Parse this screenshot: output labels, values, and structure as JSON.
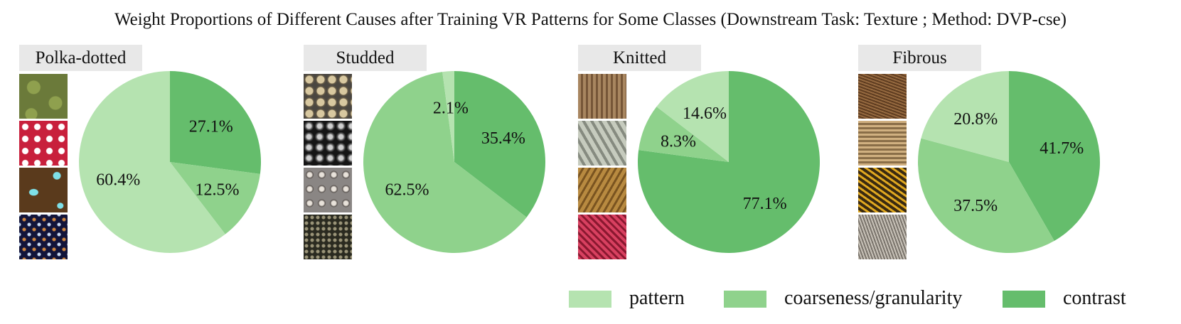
{
  "title": "Weight Proportions of Different Causes after Training VR Patterns for Some Classes (Downstream Task: Texture ; Method: DVP-cse)",
  "legend": [
    {
      "key": "pattern",
      "label": "pattern",
      "color": "#b5e3b0"
    },
    {
      "key": "coarseness",
      "label": "coarseness/granularity",
      "color": "#8fd28c"
    },
    {
      "key": "contrast",
      "label": "contrast",
      "color": "#65bd6c"
    }
  ],
  "chart_data": [
    {
      "type": "pie",
      "title": "Polka-dotted",
      "thumbnails": [
        "olive-polka-dot-swatch",
        "red-polka-dot-swatch",
        "brown-polka-dot-swatch",
        "navy-polka-dot-swatch"
      ],
      "slices": [
        {
          "label": "contrast",
          "value": 27.1,
          "text": "27.1%"
        },
        {
          "label": "coarseness/granularity",
          "value": 12.5,
          "text": "12.5%"
        },
        {
          "label": "pattern",
          "value": 60.4,
          "text": "60.4%"
        }
      ]
    },
    {
      "type": "pie",
      "title": "Studded",
      "thumbnails": [
        "silver-stud-swatch",
        "black-stud-swatch",
        "metal-rivet-swatch",
        "dark-stud-grid-swatch"
      ],
      "slices": [
        {
          "label": "contrast",
          "value": 35.4,
          "text": "35.4%"
        },
        {
          "label": "coarseness/granularity",
          "value": 62.5,
          "text": "62.5%"
        },
        {
          "label": "pattern",
          "value": 2.1,
          "text": "2.1%"
        }
      ]
    },
    {
      "type": "pie",
      "title": "Knitted",
      "thumbnails": [
        "brown-knit-swatch",
        "grey-cable-knit-swatch",
        "tan-knit-swatch",
        "red-knit-swatch"
      ],
      "slices": [
        {
          "label": "contrast",
          "value": 77.1,
          "text": "77.1%"
        },
        {
          "label": "coarseness/granularity",
          "value": 8.3,
          "text": "8.3%"
        },
        {
          "label": "pattern",
          "value": 14.6,
          "text": "14.6%"
        }
      ]
    },
    {
      "type": "pie",
      "title": "Fibrous",
      "thumbnails": [
        "brown-fiber-swatch",
        "straw-mat-swatch",
        "golden-straw-swatch",
        "grey-fiber-swatch"
      ],
      "slices": [
        {
          "label": "contrast",
          "value": 41.7,
          "text": "41.7%"
        },
        {
          "label": "coarseness/granularity",
          "value": 37.5,
          "text": "37.5%"
        },
        {
          "label": "pattern",
          "value": 20.8,
          "text": "20.8%"
        }
      ]
    }
  ]
}
